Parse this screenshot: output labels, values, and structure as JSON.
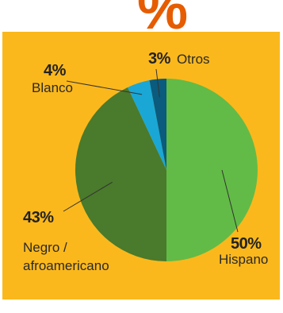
{
  "header": {
    "symbol": "%"
  },
  "colors": {
    "background": "#fbb81c",
    "symbol": "#e65c00",
    "leader": "#333333"
  },
  "chart_data": {
    "type": "pie",
    "start_angle_deg": 0,
    "direction": "clockwise",
    "slices": [
      {
        "label": "Hispano",
        "value": 50,
        "pct_text": "50%",
        "color": "#62bb46"
      },
      {
        "label": "Negro / afroamericano",
        "label_lines": [
          "Negro /",
          "afroamericano"
        ],
        "value": 43,
        "pct_text": "43%",
        "color": "#4a7a2b"
      },
      {
        "label": "Blanco",
        "value": 4,
        "pct_text": "4%",
        "color": "#1aa7d6"
      },
      {
        "label": "Otros",
        "value": 3,
        "pct_text": "3%",
        "color": "#0a5b7d"
      }
    ]
  }
}
